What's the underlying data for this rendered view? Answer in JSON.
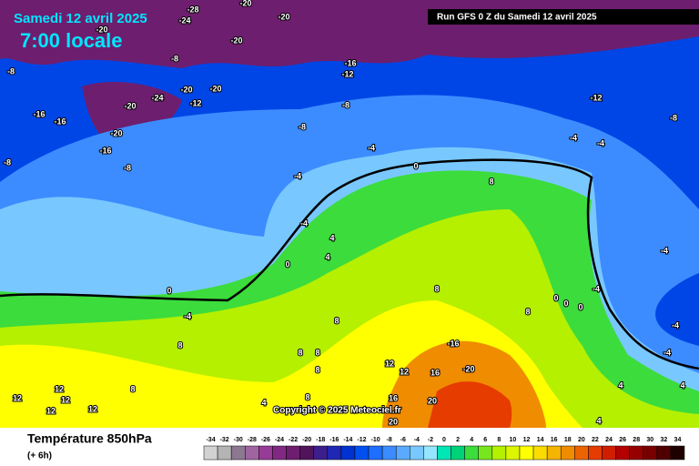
{
  "header": {
    "date": "Samedi 12 avril 2025",
    "time": "7:00 locale",
    "run": "Run GFS 0 Z du Samedi 12 avril 2025"
  },
  "map": {
    "labels": [
      "-28",
      "-20",
      "-24",
      "-20",
      "-20",
      "-20",
      "-8",
      "-16",
      "-12",
      "-8",
      "-20",
      "-20",
      "-24",
      "-12",
      "-20",
      "-8",
      "-12",
      "-16",
      "-16",
      "-20",
      "-8",
      "-8",
      "-8",
      "-16",
      "-4",
      "-4",
      "-4",
      "-8",
      "0",
      "-4",
      "8",
      "-4",
      "4",
      "0",
      "4",
      "8",
      "0",
      "-4",
      "0",
      "0",
      "0",
      "-4",
      "8",
      "8",
      "8",
      "8",
      "8",
      "-4",
      "-4",
      "-4",
      "12",
      "12",
      "-16",
      "16",
      "-20",
      "8",
      "12",
      "12",
      "12",
      "12",
      "12",
      "8",
      "16",
      "20",
      "20",
      "4",
      "8",
      "4",
      "4",
      "4"
    ]
  },
  "copyright": "Copyright © 2025 Meteociel.fr",
  "footer": {
    "title": "Température 850hPa",
    "subtitle": "(+ 6h)"
  },
  "legend": {
    "ticks": [
      -34,
      -32,
      -30,
      -28,
      -26,
      -24,
      -22,
      -20,
      -18,
      -16,
      -14,
      -12,
      -10,
      -8,
      -6,
      -4,
      -2,
      0,
      2,
      4,
      6,
      8,
      10,
      12,
      14,
      16,
      18,
      20,
      22,
      24,
      26,
      28,
      30,
      32,
      34
    ],
    "colors": [
      "#d2d2d2",
      "#b4b4b4",
      "#8c7891",
      "#a064a0",
      "#963c96",
      "#822882",
      "#6e1e6e",
      "#50145a",
      "#3c1e8c",
      "#1e28b4",
      "#0032d2",
      "#0050f0",
      "#1e6eff",
      "#3c8cff",
      "#5aaaff",
      "#78c8ff",
      "#96e6ff",
      "#00e6b4",
      "#00d278",
      "#3cdc3c",
      "#78e61e",
      "#b4f000",
      "#dcf500",
      "#ffff00",
      "#fadc00",
      "#f5b400",
      "#f08c00",
      "#eb6400",
      "#e63c00",
      "#d21e00",
      "#b40000",
      "#960000",
      "#780000",
      "#500000",
      "#1e0000"
    ]
  }
}
